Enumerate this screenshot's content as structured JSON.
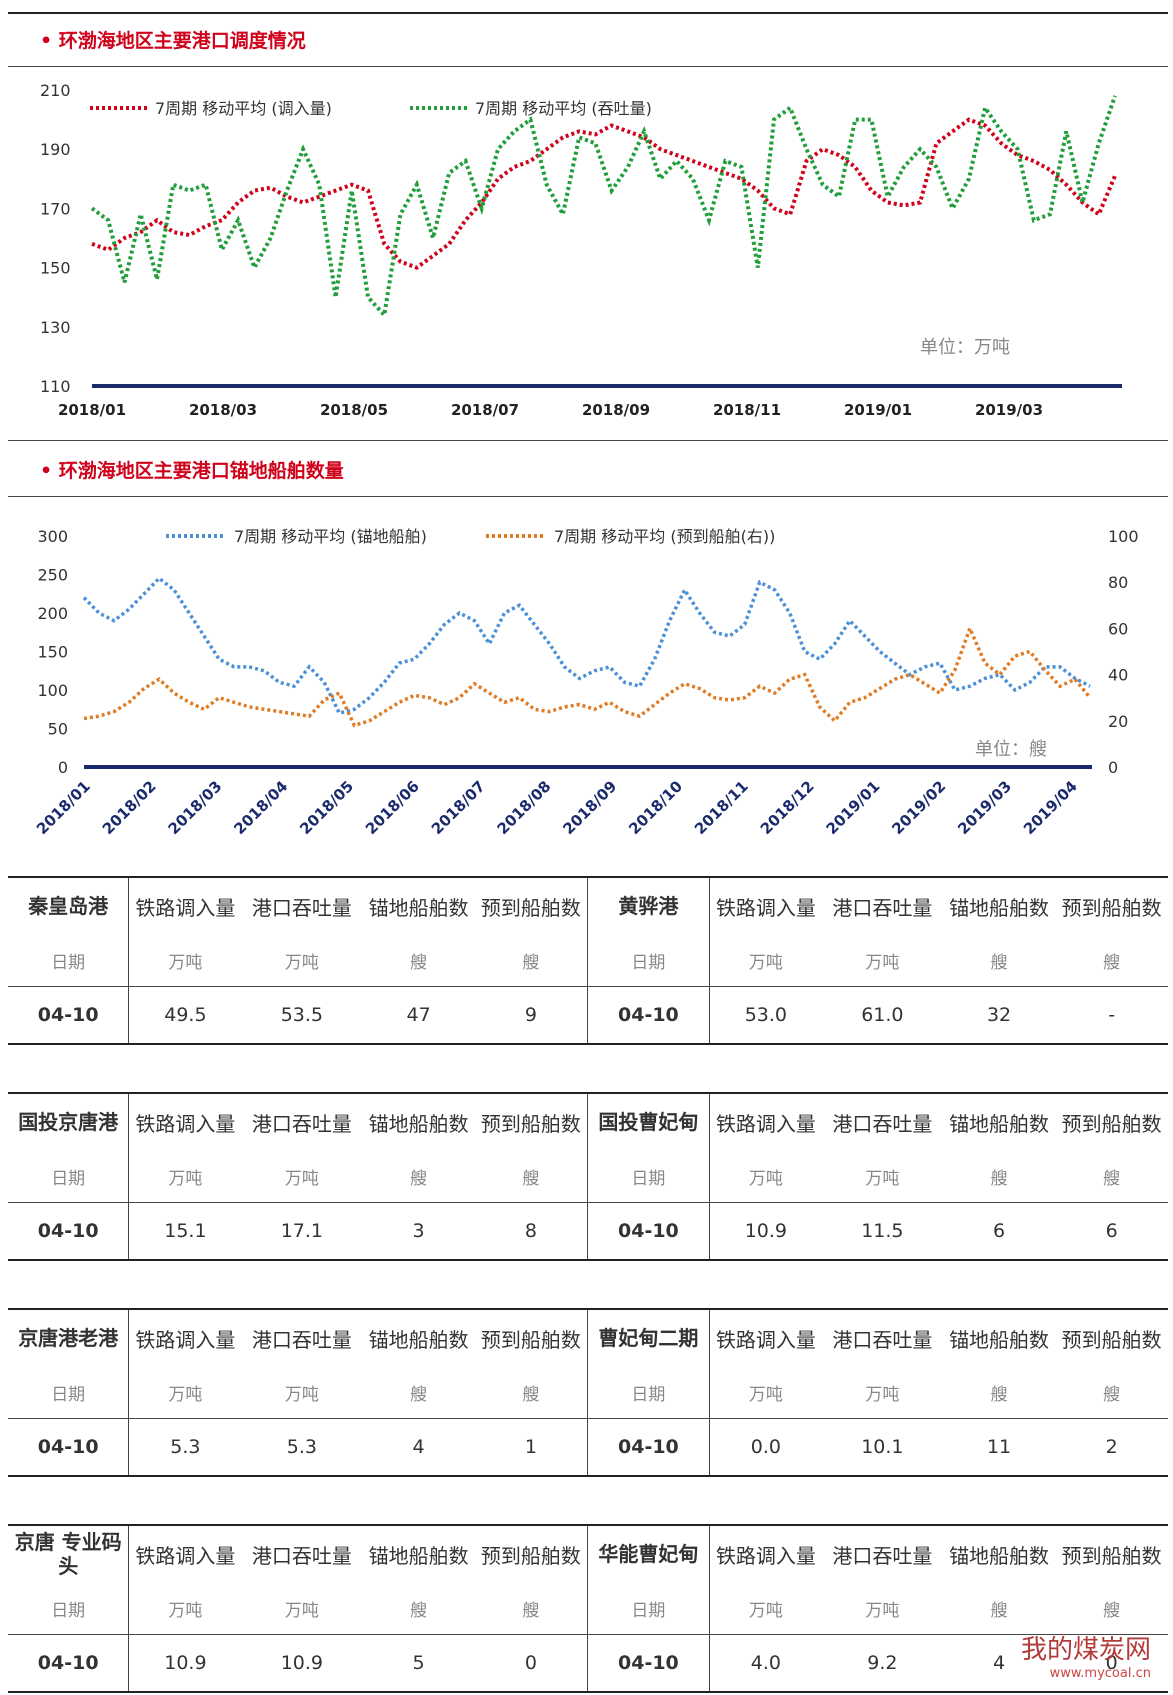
{
  "section1": {
    "title": "• 环渤海地区主要港口调度情况",
    "unit": "单位：万吨",
    "legend": [
      "7周期 移动平均 (调入量)",
      "7周期 移动平均 (吞吐量)"
    ],
    "colors": {
      "inflow": "#d0021b",
      "throughput": "#1f9e3a",
      "axis": "#1a2a6c"
    }
  },
  "section2": {
    "title": "• 环渤海地区主要港口锚地船舶数量",
    "unit": "单位：艘",
    "legend": [
      "7周期 移动平均 (锚地船舶)",
      "7周期 移动平均 (预到船舶(右))"
    ],
    "colors": {
      "anchored": "#4a90d9",
      "expected": "#e07b24",
      "axis": "#1a2a6c"
    }
  },
  "chart_data": [
    {
      "type": "line",
      "title": "环渤海地区主要港口调度情况",
      "x_ticks": [
        "2018/01",
        "2018/03",
        "2018/05",
        "2018/07",
        "2018/09",
        "2018/11",
        "2019/01",
        "2019/03"
      ],
      "y_ticks": [
        "110",
        "130",
        "150",
        "170",
        "190",
        "210"
      ],
      "ylim": [
        110,
        210
      ],
      "x_points": 64,
      "series": [
        {
          "name": "7周期 移动平均 (调入量)",
          "values": [
            158,
            156,
            160,
            162,
            166,
            162,
            161,
            164,
            166,
            172,
            176,
            177,
            174,
            172,
            174,
            176,
            178,
            176,
            158,
            152,
            150,
            154,
            158,
            166,
            172,
            180,
            184,
            186,
            190,
            194,
            196,
            195,
            198,
            196,
            194,
            190,
            188,
            186,
            184,
            182,
            180,
            176,
            170,
            168,
            186,
            190,
            188,
            184,
            176,
            172,
            171,
            172,
            192,
            196,
            200,
            198,
            192,
            188,
            186,
            183,
            178,
            172,
            168,
            181
          ]
        },
        {
          "name": "7周期 移动平均 (吞吐量)",
          "values": [
            170,
            166,
            145,
            168,
            146,
            178,
            176,
            178,
            156,
            166,
            150,
            160,
            176,
            190,
            178,
            140,
            176,
            140,
            134,
            168,
            178,
            160,
            182,
            186,
            170,
            190,
            196,
            200,
            178,
            168,
            194,
            192,
            176,
            184,
            196,
            180,
            186,
            180,
            166,
            186,
            184,
            150,
            200,
            204,
            190,
            178,
            174,
            200,
            200,
            174,
            184,
            190,
            184,
            170,
            180,
            204,
            196,
            190,
            166,
            168,
            196,
            172,
            192,
            208
          ]
        }
      ]
    },
    {
      "type": "line",
      "title": "环渤海地区主要港口锚地船舶数量",
      "x_ticks": [
        "2018/01",
        "2018/02",
        "2018/03",
        "2018/04",
        "2018/05",
        "2018/06",
        "2018/07",
        "2018/08",
        "2018/09",
        "2018/10",
        "2018/11",
        "2018/12",
        "2019/01",
        "2019/02",
        "2019/03",
        "2019/04"
      ],
      "y_left_ticks": [
        "0",
        "50",
        "100",
        "150",
        "200",
        "250",
        "300"
      ],
      "y_right_ticks": [
        "0",
        "20",
        "40",
        "60",
        "80",
        "100"
      ],
      "ylim_left": [
        0,
        300
      ],
      "ylim_right": [
        0,
        100
      ],
      "x_points": 68,
      "series": [
        {
          "name": "7周期 移动平均 (锚地船舶)",
          "axis": "left",
          "values": [
            220,
            200,
            190,
            205,
            225,
            245,
            230,
            200,
            170,
            140,
            130,
            130,
            125,
            110,
            105,
            130,
            110,
            70,
            75,
            90,
            110,
            135,
            140,
            160,
            185,
            200,
            190,
            160,
            200,
            210,
            185,
            160,
            130,
            115,
            125,
            130,
            110,
            105,
            140,
            190,
            230,
            200,
            175,
            170,
            185,
            240,
            230,
            200,
            150,
            140,
            160,
            190,
            170,
            150,
            135,
            120,
            130,
            135,
            100,
            105,
            115,
            120,
            100,
            110,
            130,
            130,
            115,
            105
          ]
        },
        {
          "name": "7周期 移动平均 (预到船舶(右))",
          "axis": "right",
          "values": [
            21,
            22,
            24,
            28,
            34,
            38,
            32,
            28,
            25,
            30,
            28,
            26,
            25,
            24,
            23,
            22,
            29,
            32,
            18,
            20,
            24,
            28,
            31,
            30,
            27,
            30,
            36,
            32,
            28,
            30,
            25,
            24,
            26,
            27,
            25,
            28,
            24,
            22,
            27,
            32,
            36,
            34,
            30,
            29,
            30,
            35,
            32,
            38,
            40,
            26,
            20,
            28,
            30,
            34,
            38,
            40,
            36,
            32,
            42,
            60,
            45,
            40,
            48,
            50,
            42,
            35,
            38,
            30
          ]
        }
      ]
    }
  ],
  "tables": [
    {
      "ports": [
        {
          "name": "秦皇岛港",
          "date": "04-10",
          "values": [
            "49.5",
            "53.5",
            "47",
            "9"
          ]
        },
        {
          "name": "黄骅港",
          "date": "04-10",
          "values": [
            "53.0",
            "61.0",
            "32",
            "-"
          ]
        }
      ]
    },
    {
      "ports": [
        {
          "name": "国投京唐港",
          "date": "04-10",
          "values": [
            "15.1",
            "17.1",
            "3",
            "8"
          ]
        },
        {
          "name": "国投曹妃甸",
          "date": "04-10",
          "values": [
            "10.9",
            "11.5",
            "6",
            "6"
          ]
        }
      ]
    },
    {
      "ports": [
        {
          "name": "京唐港老港",
          "date": "04-10",
          "values": [
            "5.3",
            "5.3",
            "4",
            "1"
          ]
        },
        {
          "name": "曹妃甸二期",
          "date": "04-10",
          "values": [
            "0.0",
            "10.1",
            "11",
            "2"
          ]
        }
      ]
    },
    {
      "ports": [
        {
          "name": "京唐 专业码头",
          "date": "04-10",
          "values": [
            "10.9",
            "10.9",
            "5",
            "0"
          ]
        },
        {
          "name": "华能曹妃甸",
          "date": "04-10",
          "values": [
            "4.0",
            "9.2",
            "4",
            "0"
          ]
        }
      ]
    }
  ],
  "table_headers": [
    "铁路调入量",
    "港口吞吐量",
    "锚地船舶数",
    "预到船舶数"
  ],
  "table_units": [
    "日期",
    "万吨",
    "万吨",
    "艘",
    "艘"
  ],
  "watermark": {
    "main": "我的煤炭网",
    "sub": "www.mycoal.cn"
  }
}
